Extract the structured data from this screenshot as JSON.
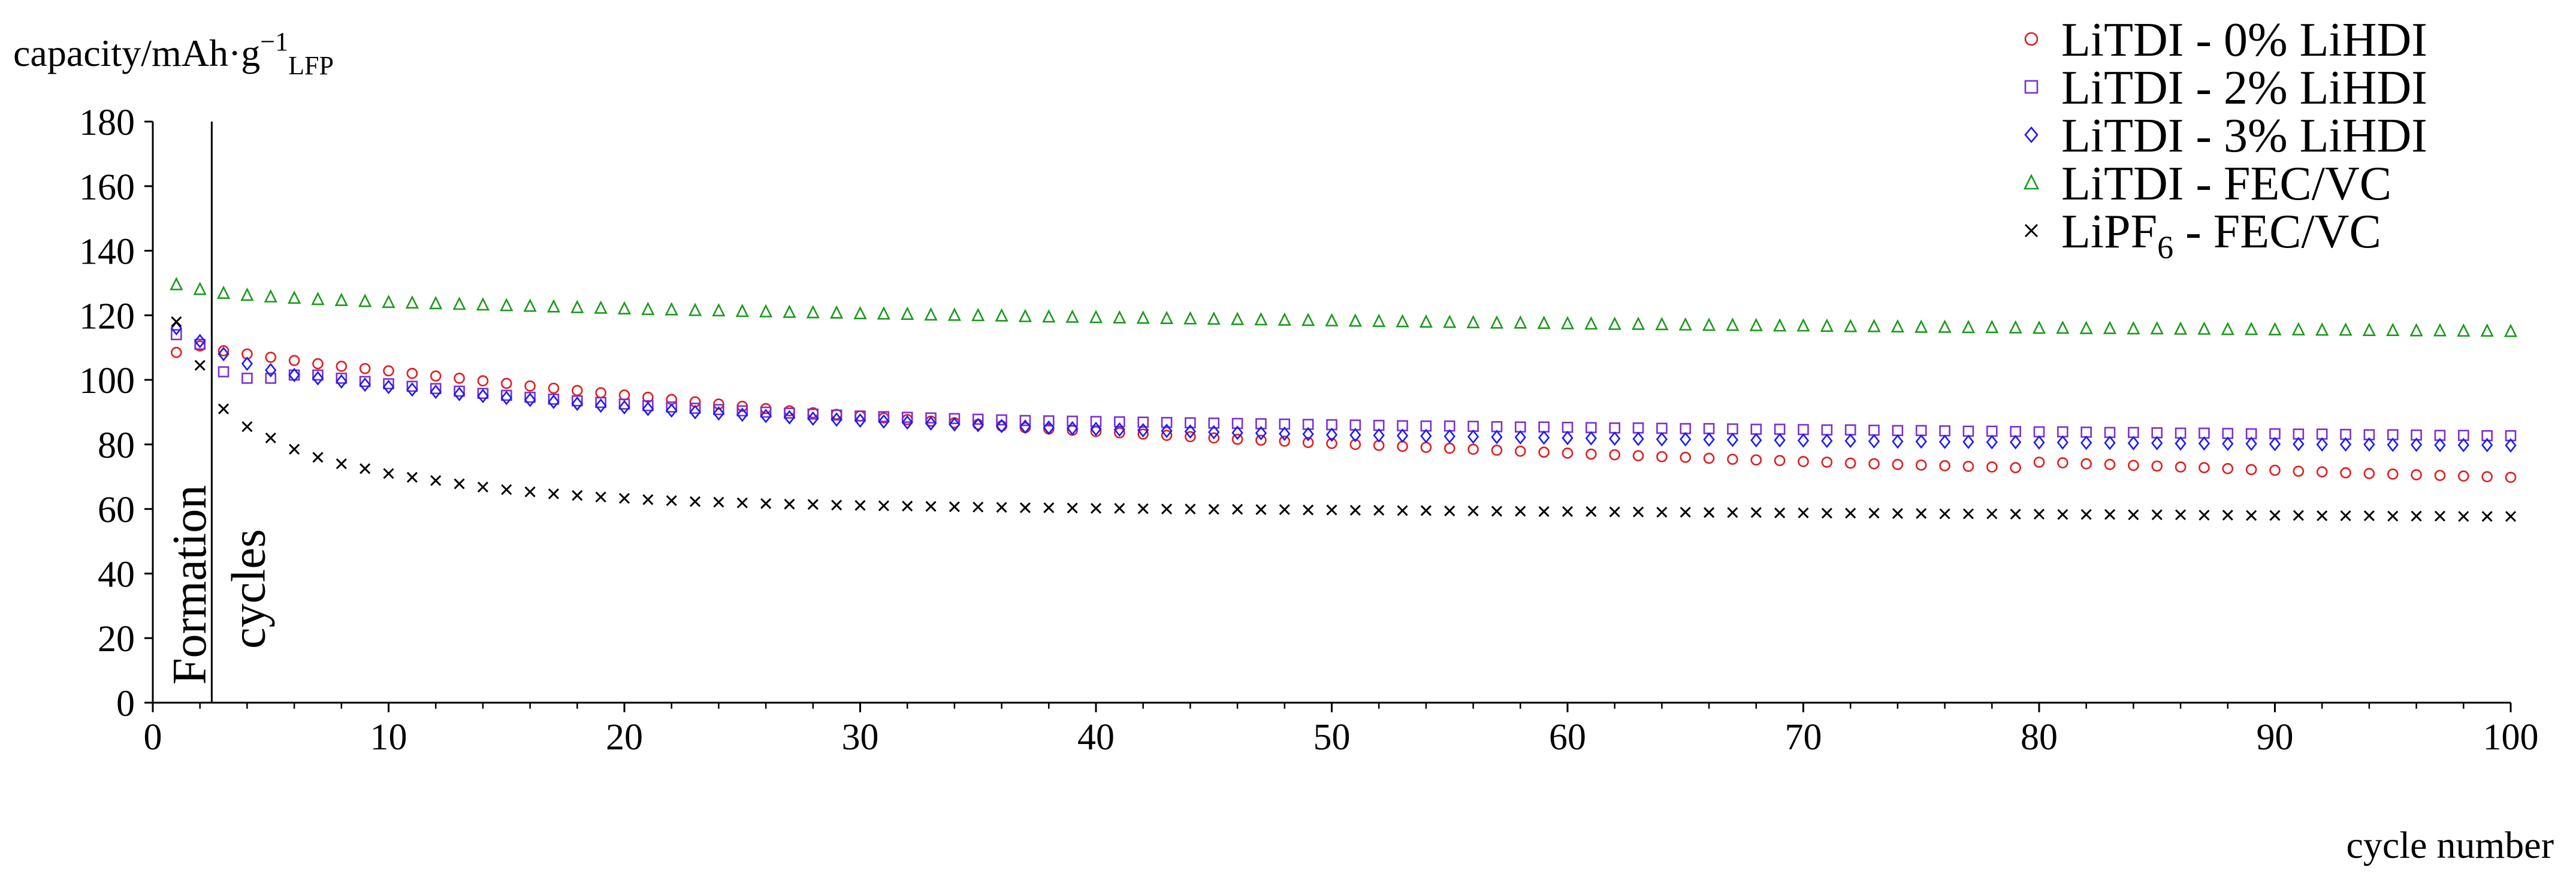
{
  "chart_data": {
    "type": "scatter",
    "ylabel_parts": [
      "capacity/mAh·g",
      "−1",
      "LFP"
    ],
    "xlabel": "cycle number",
    "xlim": [
      0,
      100
    ],
    "ylim": [
      0,
      180
    ],
    "xticks": [
      0,
      10,
      20,
      30,
      40,
      50,
      60,
      70,
      80,
      90,
      100
    ],
    "yticks": [
      0,
      20,
      40,
      60,
      80,
      100,
      120,
      140,
      160,
      180
    ],
    "grid": false,
    "legend_position": "top-right",
    "annotation": {
      "label1": "Formation",
      "label2": "cycles",
      "divider_x": 2.5
    },
    "series": [
      {
        "name": "LiTDI - 0% LiHDI",
        "marker": "circle",
        "color": "#e41a1c",
        "x": [
          1,
          2,
          3,
          4,
          5,
          6,
          7,
          8,
          9,
          10,
          11,
          12,
          13,
          14,
          15,
          16,
          17,
          18,
          19,
          20,
          21,
          22,
          23,
          24,
          25,
          26,
          27,
          28,
          29,
          30,
          31,
          32,
          33,
          34,
          35,
          36,
          37,
          38,
          39,
          40,
          41,
          42,
          43,
          44,
          45,
          46,
          47,
          48,
          49,
          50,
          51,
          52,
          53,
          54,
          55,
          56,
          57,
          58,
          59,
          60,
          61,
          62,
          63,
          64,
          65,
          66,
          67,
          68,
          69,
          70,
          71,
          72,
          73,
          74,
          75,
          76,
          77,
          78,
          79,
          80,
          81,
          82,
          83,
          84,
          85,
          86,
          87,
          88,
          89,
          90,
          91,
          92,
          93,
          94,
          95,
          96,
          97,
          98,
          99,
          100
        ],
        "y": [
          108.5,
          110.5,
          109,
          108,
          107,
          106,
          105,
          104.2,
          103.5,
          102.8,
          102,
          101.2,
          100.5,
          99.7,
          98.9,
          98.1,
          97.4,
          96.7,
          96,
          95.3,
          94.6,
          93.9,
          93.2,
          92.5,
          91.8,
          91.1,
          90.4,
          89.8,
          89.3,
          88.8,
          88.2,
          87.7,
          87.2,
          86.7,
          86.2,
          85.7,
          85.2,
          84.8,
          84.4,
          84,
          83.6,
          83.2,
          82.8,
          82.4,
          82,
          81.6,
          81.3,
          81,
          80.6,
          80.3,
          80,
          79.7,
          79.4,
          79.1,
          78.8,
          78.5,
          78.2,
          77.9,
          77.6,
          77.3,
          77,
          76.8,
          76.5,
          76.2,
          76,
          75.7,
          75.4,
          75.2,
          75,
          74.7,
          74.5,
          74.2,
          74,
          73.8,
          73.6,
          73.4,
          73.2,
          73,
          72.8,
          74.5,
          74.3,
          74,
          73.8,
          73.5,
          73.3,
          73,
          72.8,
          72.5,
          72.2,
          72,
          71.7,
          71.5,
          71.2,
          71,
          70.8,
          70.6,
          70.4,
          70.2,
          70,
          69.8
        ]
      },
      {
        "name": "LiTDI - 2% LiHDI",
        "marker": "square",
        "color": "#7b2fd6",
        "x": [
          1,
          2,
          3,
          4,
          5,
          6,
          7,
          8,
          9,
          10,
          11,
          12,
          13,
          14,
          15,
          16,
          17,
          18,
          19,
          20,
          21,
          22,
          23,
          24,
          25,
          26,
          27,
          28,
          29,
          30,
          31,
          32,
          33,
          34,
          35,
          36,
          37,
          38,
          39,
          40,
          41,
          42,
          43,
          44,
          45,
          46,
          47,
          48,
          49,
          50,
          51,
          52,
          53,
          54,
          55,
          56,
          57,
          58,
          59,
          60,
          61,
          62,
          63,
          64,
          65,
          66,
          67,
          68,
          69,
          70,
          71,
          72,
          73,
          74,
          75,
          76,
          77,
          78,
          79,
          80,
          81,
          82,
          83,
          84,
          85,
          86,
          87,
          88,
          89,
          90,
          91,
          92,
          93,
          94,
          95,
          96,
          97,
          98,
          99,
          100
        ],
        "y": [
          114,
          111,
          102.5,
          100.5,
          100.5,
          101.5,
          101.5,
          100.5,
          99.5,
          98.8,
          98,
          97.3,
          96.5,
          95.8,
          95.2,
          94.6,
          94,
          93.5,
          93,
          92.5,
          92,
          91.6,
          91.2,
          90.8,
          90.4,
          90,
          89.7,
          89.4,
          89.1,
          88.8,
          88.6,
          88.4,
          88.2,
          88,
          87.8,
          87.6,
          87.4,
          87.3,
          87.2,
          87.1,
          87,
          86.9,
          86.8,
          86.7,
          86.6,
          86.5,
          86.4,
          86.3,
          86.2,
          86.1,
          86,
          85.9,
          85.8,
          85.7,
          85.7,
          85.6,
          85.5,
          85.4,
          85.4,
          85.3,
          85.2,
          85.1,
          85.1,
          85,
          84.9,
          84.9,
          84.8,
          84.7,
          84.7,
          84.6,
          84.5,
          84.5,
          84.4,
          84.3,
          84.3,
          84.2,
          84.1,
          84.1,
          84,
          83.9,
          83.9,
          83.8,
          83.7,
          83.7,
          83.6,
          83.5,
          83.5,
          83.4,
          83.3,
          83.3,
          83.2,
          83.2,
          83.1,
          83,
          83,
          82.9,
          82.8,
          82.8,
          82.7,
          82.7
        ]
      },
      {
        "name": "LiTDI - 3% LiHDI",
        "marker": "diamond",
        "color": "#1a1aff",
        "x": [
          1,
          2,
          3,
          4,
          5,
          6,
          7,
          8,
          9,
          10,
          11,
          12,
          13,
          14,
          15,
          16,
          17,
          18,
          19,
          20,
          21,
          22,
          23,
          24,
          25,
          26,
          27,
          28,
          29,
          30,
          31,
          32,
          33,
          34,
          35,
          36,
          37,
          38,
          39,
          40,
          41,
          42,
          43,
          44,
          45,
          46,
          47,
          48,
          49,
          50,
          51,
          52,
          53,
          54,
          55,
          56,
          57,
          58,
          59,
          60,
          61,
          62,
          63,
          64,
          65,
          66,
          67,
          68,
          69,
          70,
          71,
          72,
          73,
          74,
          75,
          76,
          77,
          78,
          79,
          80,
          81,
          82,
          83,
          84,
          85,
          86,
          87,
          88,
          89,
          90,
          91,
          92,
          93,
          94,
          95,
          96,
          97,
          98,
          99,
          100
        ],
        "y": [
          116,
          112,
          108,
          105,
          103,
          101.5,
          100.5,
          99.5,
          98.5,
          97.8,
          97,
          96.3,
          95.6,
          95,
          94.4,
          93.8,
          93.2,
          92.6,
          92,
          91.5,
          91,
          90.5,
          90,
          89.6,
          89.2,
          88.8,
          88.4,
          88,
          87.7,
          87.4,
          87.1,
          86.8,
          86.5,
          86.2,
          86,
          85.7,
          85.5,
          85.2,
          85,
          84.8,
          84.6,
          84.4,
          84.2,
          84,
          83.8,
          83.6,
          83.5,
          83.3,
          83.2,
          83,
          82.9,
          82.8,
          82.7,
          82.6,
          82.5,
          82.4,
          82.3,
          82.2,
          82.1,
          82,
          81.9,
          81.8,
          81.7,
          81.6,
          81.6,
          81.5,
          81.4,
          81.3,
          81.3,
          81.2,
          81.1,
          81.1,
          81,
          80.9,
          80.9,
          80.8,
          80.8,
          80.7,
          80.7,
          80.6,
          80.6,
          80.5,
          80.5,
          80.4,
          80.4,
          80.3,
          80.3,
          80.2,
          80.2,
          80.1,
          80.1,
          80,
          80,
          80,
          79.9,
          79.9,
          79.8,
          79.8,
          79.8,
          79.7
        ]
      },
      {
        "name": "LiTDI - FEC/VC",
        "marker": "triangle",
        "color": "#1a9a1a",
        "x": [
          1,
          2,
          3,
          4,
          5,
          6,
          7,
          8,
          9,
          10,
          11,
          12,
          13,
          14,
          15,
          16,
          17,
          18,
          19,
          20,
          21,
          22,
          23,
          24,
          25,
          26,
          27,
          28,
          29,
          30,
          31,
          32,
          33,
          34,
          35,
          36,
          37,
          38,
          39,
          40,
          41,
          42,
          43,
          44,
          45,
          46,
          47,
          48,
          49,
          50,
          51,
          52,
          53,
          54,
          55,
          56,
          57,
          58,
          59,
          60,
          61,
          62,
          63,
          64,
          65,
          66,
          67,
          68,
          69,
          70,
          71,
          72,
          73,
          74,
          75,
          76,
          77,
          78,
          79,
          80,
          81,
          82,
          83,
          84,
          85,
          86,
          87,
          88,
          89,
          90,
          91,
          92,
          93,
          94,
          95,
          96,
          97,
          98,
          99,
          100
        ],
        "y": [
          129.5,
          128,
          126.8,
          126.2,
          125.7,
          125.3,
          124.9,
          124.6,
          124.3,
          124,
          123.8,
          123.6,
          123.4,
          123.2,
          123,
          122.8,
          122.6,
          122.4,
          122.2,
          122,
          121.8,
          121.7,
          121.5,
          121.4,
          121.2,
          121.1,
          120.9,
          120.8,
          120.7,
          120.5,
          120.4,
          120.3,
          120.1,
          120,
          119.9,
          119.8,
          119.6,
          119.5,
          119.4,
          119.3,
          119.2,
          119.1,
          119,
          118.9,
          118.8,
          118.7,
          118.6,
          118.5,
          118.4,
          118.3,
          118.2,
          118.1,
          118,
          117.9,
          117.8,
          117.7,
          117.6,
          117.6,
          117.5,
          117.4,
          117.3,
          117.2,
          117.2,
          117.1,
          117,
          116.9,
          116.9,
          116.8,
          116.7,
          116.7,
          116.6,
          116.5,
          116.5,
          116.4,
          116.3,
          116.3,
          116.2,
          116.2,
          116.1,
          116,
          116,
          115.9,
          115.9,
          115.8,
          115.8,
          115.7,
          115.7,
          115.6,
          115.6,
          115.5,
          115.5,
          115.4,
          115.4,
          115.3,
          115.3,
          115.2,
          115.2,
          115.1,
          115.1,
          115
        ]
      },
      {
        "name": "LiPF6 - FEC/VC",
        "marker": "cross",
        "color": "#000000",
        "x": [
          1,
          2,
          3,
          4,
          5,
          6,
          7,
          8,
          9,
          10,
          11,
          12,
          13,
          14,
          15,
          16,
          17,
          18,
          19,
          20,
          21,
          22,
          23,
          24,
          25,
          26,
          27,
          28,
          29,
          30,
          31,
          32,
          33,
          34,
          35,
          36,
          37,
          38,
          39,
          40,
          41,
          42,
          43,
          44,
          45,
          46,
          47,
          48,
          49,
          50,
          51,
          52,
          53,
          54,
          55,
          56,
          57,
          58,
          59,
          60,
          61,
          62,
          63,
          64,
          65,
          66,
          67,
          68,
          69,
          70,
          71,
          72,
          73,
          74,
          75,
          76,
          77,
          78,
          79,
          80,
          81,
          82,
          83,
          84,
          85,
          86,
          87,
          88,
          89,
          90,
          91,
          92,
          93,
          94,
          95,
          96,
          97,
          98,
          99,
          100
        ],
        "y": [
          118,
          104.5,
          91,
          85.5,
          82,
          78.5,
          76,
          74,
          72.5,
          71,
          69.8,
          68.8,
          67.8,
          66.8,
          66,
          65.3,
          64.7,
          64.2,
          63.7,
          63.3,
          62.9,
          62.6,
          62.3,
          62.1,
          61.9,
          61.7,
          61.5,
          61.4,
          61.2,
          61.1,
          61,
          60.9,
          60.8,
          60.7,
          60.6,
          60.5,
          60.4,
          60.4,
          60.3,
          60.2,
          60.2,
          60.1,
          60,
          60,
          59.9,
          59.9,
          59.8,
          59.8,
          59.7,
          59.7,
          59.6,
          59.6,
          59.5,
          59.5,
          59.4,
          59.4,
          59.3,
          59.3,
          59.2,
          59.2,
          59.2,
          59.1,
          59.1,
          59,
          59,
          58.9,
          58.9,
          58.9,
          58.8,
          58.8,
          58.7,
          58.7,
          58.7,
          58.6,
          58.6,
          58.5,
          58.5,
          58.5,
          58.4,
          58.4,
          58.3,
          58.3,
          58.3,
          58.2,
          58.2,
          58.2,
          58.1,
          58.1,
          58,
          58,
          58,
          57.9,
          57.9,
          57.9,
          57.8,
          57.8,
          57.8,
          57.7,
          57.7,
          57.7
        ]
      }
    ],
    "legend_entries": [
      {
        "marker": "circle",
        "color": "#e41a1c",
        "parts": [
          "LiTDI - 0% LiHDI"
        ]
      },
      {
        "marker": "square",
        "color": "#7b2fd6",
        "parts": [
          "LiTDI - 2% LiHDI"
        ]
      },
      {
        "marker": "diamond",
        "color": "#1a1aff",
        "parts": [
          "LiTDI - 3% LiHDI"
        ]
      },
      {
        "marker": "triangle",
        "color": "#1a9a1a",
        "parts": [
          "LiTDI - FEC/VC"
        ]
      },
      {
        "marker": "cross",
        "color": "#000000",
        "parts": [
          "LiPF",
          "6",
          "  - FEC/VC"
        ]
      }
    ]
  }
}
